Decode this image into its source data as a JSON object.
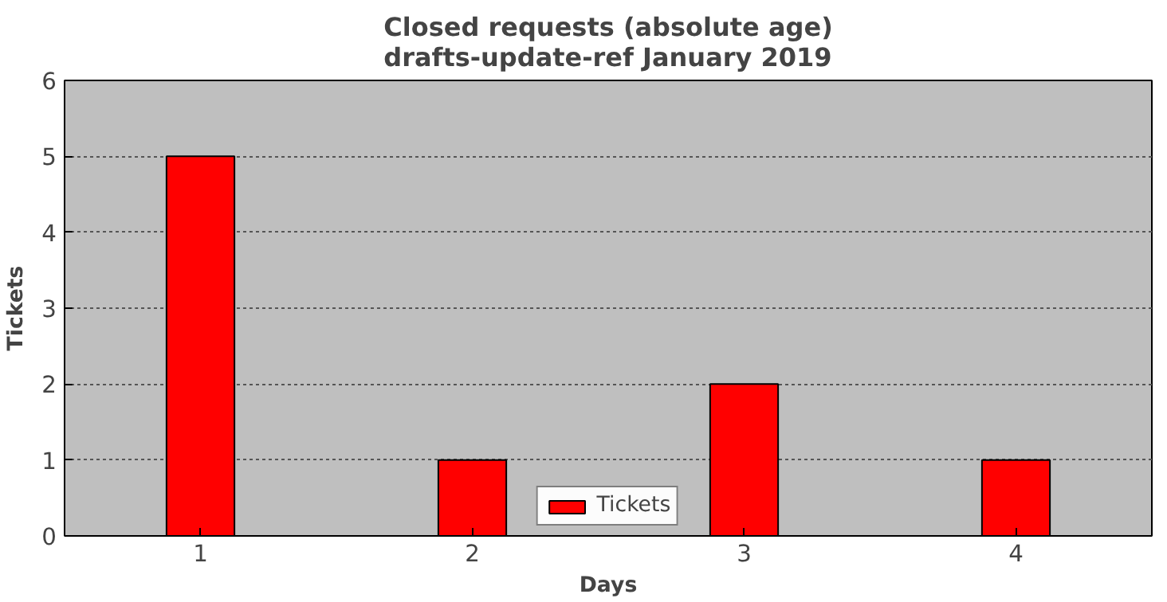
{
  "chart_data": {
    "type": "bar",
    "title": "Closed requests (absolute age)\ndrafts-update-ref January 2019",
    "xlabel": "Days",
    "ylabel": "Tickets",
    "x": [
      1,
      2,
      3,
      4
    ],
    "xlim": [
      0.5,
      4.5
    ],
    "xticks": [
      1,
      2,
      3,
      4
    ],
    "ylim": [
      0,
      6
    ],
    "yticks": [
      0,
      1,
      2,
      3,
      4,
      5,
      6
    ],
    "series": [
      {
        "name": "Tickets",
        "color": "#ff0000",
        "values": [
          5,
          1,
          2,
          1
        ]
      }
    ],
    "grid": "y",
    "legend": "bottom"
  }
}
